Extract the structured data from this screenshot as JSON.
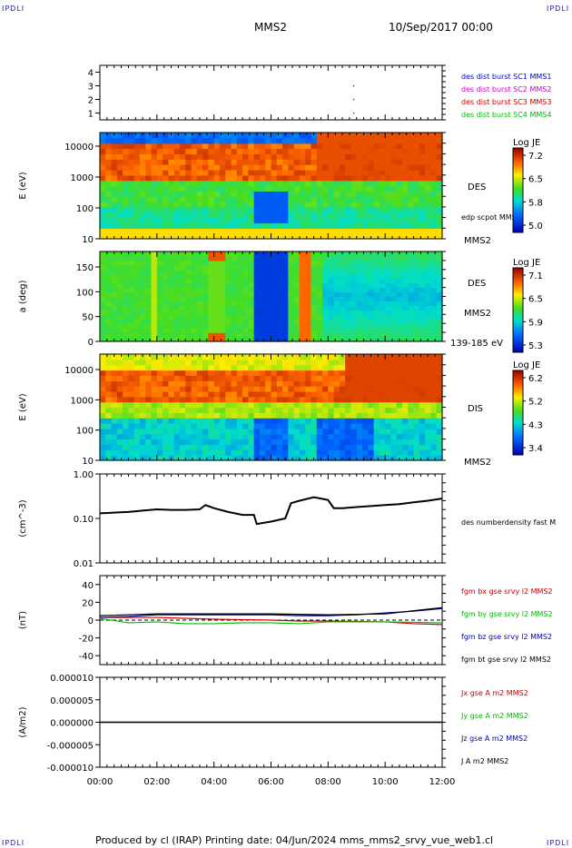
{
  "corner_label": "IPDLI",
  "header": {
    "spacecraft": "MMS2",
    "date": "10/Sep/2017 00:00"
  },
  "footer": {
    "text": "Produced by cl (IRAP)   Printing date: 04/Jun/2024   mms_mms2_srvy_vue_web1.cl"
  },
  "colors": {
    "mms1": "#0000cc",
    "mms2": "#cc00cc",
    "mms3": "#cc0000",
    "mms4": "#00bb00",
    "bx": "#cc0000",
    "by": "#00bb00",
    "bz": "#0000aa",
    "bt": "#000000"
  },
  "x_ticks": [
    "00:00",
    "02:00",
    "04:00",
    "06:00",
    "08:00",
    "10:00",
    "12:00"
  ],
  "chart_data": [
    {
      "type": "scatter",
      "id": "burst",
      "yticks": [
        "4",
        "3",
        "2",
        "1"
      ],
      "ylim": [
        0.5,
        4.5
      ],
      "series_labels": [
        "des dist burst SC1 MMS1",
        "des dist burst SC2 MMS2",
        "des dist burst SC3 MMS3",
        "des dist burst SC4 MMS4"
      ],
      "points": [
        {
          "x_hours": 8.9,
          "y": 3
        },
        {
          "x_hours": 8.9,
          "y": 2
        },
        {
          "x_hours": 8.9,
          "y": 1
        }
      ]
    },
    {
      "type": "heatmap",
      "id": "des-energy",
      "ylabel": "E (eV)",
      "yticks": [
        "10000",
        "1000",
        "100",
        "10"
      ],
      "yscale": "log",
      "instrument": "DES",
      "overlay": "edp scpot MMS2",
      "spacecraft": "MMS2",
      "colorbar": {
        "title": "Log JE",
        "ticks": [
          "7.2",
          "6.5",
          "5.8",
          "5.0"
        ]
      }
    },
    {
      "type": "heatmap",
      "id": "des-pitch",
      "ylabel": "a (deg)",
      "yticks": [
        "150",
        "100",
        "50",
        "0"
      ],
      "instrument": "DES",
      "spacecraft": "MMS2",
      "energy_range": "139-185 eV",
      "colorbar": {
        "title": "Log JE",
        "ticks": [
          "7.1",
          "6.5",
          "5.9",
          "5.3"
        ]
      }
    },
    {
      "type": "heatmap",
      "id": "dis-energy",
      "ylabel": "E (eV)",
      "yticks": [
        "10000",
        "1000",
        "100",
        "10"
      ],
      "yscale": "log",
      "instrument": "DIS",
      "spacecraft": "MMS2",
      "colorbar": {
        "title": "Log JE",
        "ticks": [
          "6.2",
          "5.2",
          "4.3",
          "3.4"
        ]
      }
    },
    {
      "type": "line",
      "id": "density",
      "ylabel": "(cm^-3)",
      "yscale": "log",
      "ylim": [
        0.01,
        1.0
      ],
      "yticks": [
        "1.00",
        "0.10",
        "0.01"
      ],
      "series": [
        {
          "name": "des numberdensity fast M",
          "x_hours": [
            0,
            0.5,
            1.0,
            1.5,
            2.0,
            2.5,
            3.0,
            3.5,
            3.7,
            4.0,
            4.5,
            5.0,
            5.4,
            5.5,
            6.0,
            6.5,
            6.7,
            7.0,
            7.5,
            8.0,
            8.2,
            8.5,
            9.0,
            9.5,
            10.0,
            10.5,
            11.0,
            11.5,
            12.0
          ],
          "values": [
            0.13,
            0.135,
            0.14,
            0.15,
            0.16,
            0.155,
            0.155,
            0.16,
            0.2,
            0.17,
            0.14,
            0.12,
            0.12,
            0.075,
            0.085,
            0.1,
            0.22,
            0.25,
            0.3,
            0.26,
            0.17,
            0.17,
            0.18,
            0.19,
            0.2,
            0.21,
            0.23,
            0.25,
            0.28
          ]
        }
      ]
    },
    {
      "type": "line",
      "id": "bfield",
      "ylabel": "(nT)",
      "ylim": [
        -50,
        50
      ],
      "yticks": [
        "40",
        "20",
        "0",
        "-20",
        "-40"
      ],
      "series": [
        {
          "name": "fgm bx gse srvy l2 MMS2",
          "x_hours": [
            0,
            2,
            4,
            6,
            7,
            8,
            10,
            11,
            12
          ],
          "values": [
            3,
            3,
            1,
            0,
            -1,
            -1,
            -2,
            -4,
            -5
          ]
        },
        {
          "name": "fgm by gse srvy l2 MMS2",
          "x_hours": [
            0,
            1,
            2,
            3,
            4,
            5,
            6,
            7,
            8,
            10,
            12
          ],
          "values": [
            2,
            -3,
            -2,
            -4,
            -4,
            -3,
            -3,
            -4,
            -2,
            -2,
            -3
          ]
        },
        {
          "name": "fgm bz gse srvy l2 MMS2",
          "x_hours": [
            0,
            1,
            2,
            4,
            6,
            7,
            8,
            9,
            10,
            11,
            12
          ],
          "values": [
            3,
            4,
            6,
            6,
            6,
            5,
            5,
            6,
            8,
            10,
            13
          ]
        },
        {
          "name": "fgm bt gse srvy l2 MMS2",
          "x_hours": [
            0,
            2,
            4,
            6,
            8,
            10,
            12
          ],
          "values": [
            5,
            7,
            7,
            7,
            6,
            7,
            14
          ]
        }
      ]
    },
    {
      "type": "line",
      "id": "current",
      "ylabel": "(A/m2)",
      "ylim": [
        -1e-05,
        1e-05
      ],
      "yticks": [
        "0.000010",
        "0.000005",
        "0.000000",
        "-0.000005",
        "-0.000010"
      ],
      "series": [
        {
          "name": "Jx gse A m2 MMS2",
          "x_hours": [
            0,
            12
          ],
          "values": [
            0,
            0
          ]
        },
        {
          "name": "Jy gse A m2 MMS2",
          "x_hours": [
            0,
            12
          ],
          "values": [
            0,
            0
          ]
        },
        {
          "name": "Jz gse A m2 MMS2",
          "x_hours": [
            0,
            12
          ],
          "values": [
            0,
            0
          ]
        },
        {
          "name": "J A m2 MMS2",
          "x_hours": [
            0,
            12
          ],
          "values": [
            0,
            0
          ]
        }
      ]
    }
  ]
}
